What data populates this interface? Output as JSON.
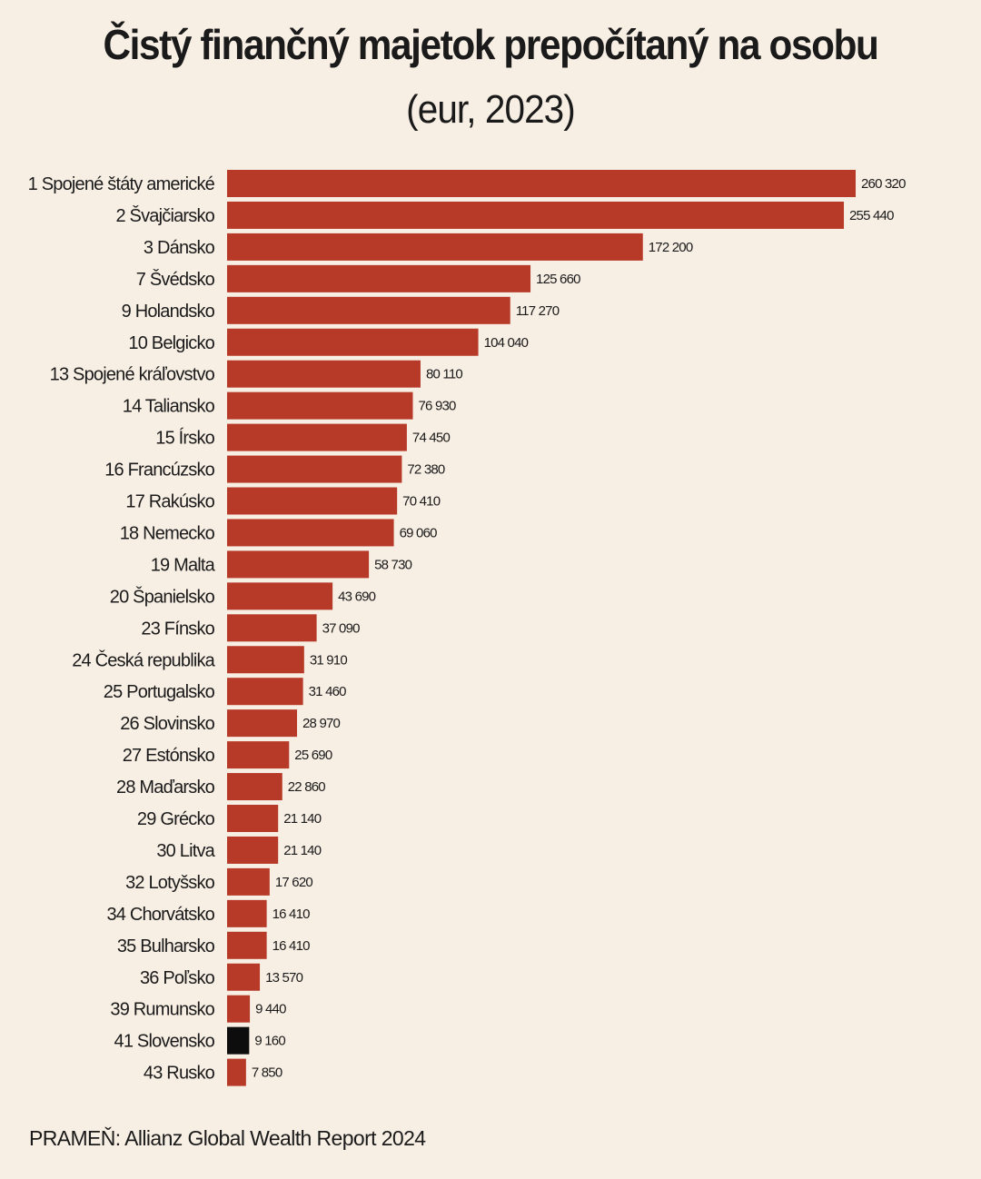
{
  "header": {
    "title": "Čistý finančný majetok prepočítaný na osobu",
    "subtitle": "(eur, 2023)"
  },
  "source": "PRAMEŇ: Allianz Global Wealth Report 2024",
  "colors": {
    "background": "#f8efe4",
    "bar": "#b73a29",
    "highlight_bar": "#0d0d0d"
  },
  "chart_data": {
    "type": "bar",
    "orientation": "horizontal",
    "title": "Čistý finančný majetok prepočítaný na osobu",
    "subtitle": "(eur, 2023)",
    "xlim": [
      0,
      260320
    ],
    "grid": false,
    "categories": [
      "1 Spojené štáty americké",
      "2 Švajčiarsko",
      "3 Dánsko",
      "7 Švédsko",
      "9 Holandsko",
      "10 Belgicko",
      "13 Spojené kráľovstvo",
      "14 Taliansko",
      "15 Írsko",
      "16 Francúzsko",
      "17 Rakúsko",
      "18 Nemecko",
      "19 Malta",
      "20 Španielsko",
      "23 Fínsko",
      "24 Česká republika",
      "25 Portugalsko",
      "26 Slovinsko",
      "27 Estónsko",
      "28 Maďarsko",
      "29 Grécko",
      "30 Litva",
      "32 Lotyšsko",
      "34 Chorvátsko",
      "35 Bulharsko",
      "36 Poľsko",
      "39 Rumunsko",
      "41 Slovensko",
      "43 Rusko"
    ],
    "values": [
      260320,
      255440,
      172200,
      125660,
      117270,
      104040,
      80110,
      76930,
      74450,
      72380,
      70410,
      69060,
      58730,
      43690,
      37090,
      31910,
      31460,
      28970,
      25690,
      22860,
      21140,
      21140,
      17620,
      16410,
      16410,
      13570,
      9440,
      9160,
      7850
    ],
    "value_labels": [
      "260 320",
      "255 440",
      "172 200",
      "125 660",
      "117 270",
      "104 040",
      "80 110",
      "76 930",
      "74 450",
      "72 380",
      "70 410",
      "69 060",
      "58 730",
      "43 690",
      "37 090",
      "31 910",
      "31 460",
      "28 970",
      "25 690",
      "22 860",
      "21 140",
      "21 140",
      "17 620",
      "16 410",
      "16 410",
      "13 570",
      "9 440",
      "9 160",
      "7 850"
    ],
    "highlight": "41 Slovensko"
  }
}
